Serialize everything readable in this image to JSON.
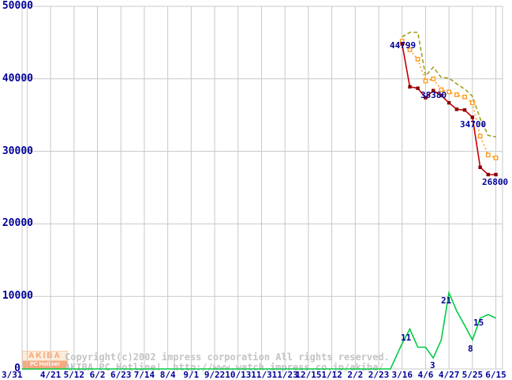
{
  "colors": {
    "background": "#ffffff",
    "grid": "#c8c8c8",
    "axis_text": "#000099",
    "watermark_text": "#c4c4c4",
    "lowest_line": "#c40000",
    "lowest_marker": "#8b0000",
    "average_line": "#ff9c20",
    "highest_line": "#a0a020",
    "shops_line": "#00cc44"
  },
  "watermark": {
    "logo_top": "AKIBA",
    "logo_bottom": "PC Hotline!",
    "line1": "Copyright(c)2002 impress corporation All rights reserved.",
    "line2": "AKIBA PC Hotline!  http://www.watch.impress.co.jp/akiba/"
  },
  "chart_data": {
    "type": "line",
    "title": "",
    "grid": true,
    "x_axis": {
      "tick_labels": [
        "3/31",
        "4/21",
        "5/12",
        "6/2",
        "6/23",
        "7/14",
        "8/4",
        "9/1",
        "9/22",
        "10/13",
        "11/3",
        "11/23",
        "12/15",
        "1/12",
        "2/2",
        "2/23",
        "3/16",
        "4/6",
        "4/27",
        "5/25",
        "6/15"
      ]
    },
    "y_axis": {
      "min": 0,
      "max": 50000,
      "tick_labels": [
        "0",
        "10000",
        "20000",
        "30000",
        "40000",
        "50000"
      ]
    },
    "y2_axis": {
      "min": 0,
      "max": 100,
      "visible": false,
      "note": "hidden scale used by shop_count line"
    },
    "series": [
      {
        "name": "highest_price",
        "style": "dashed",
        "dash": "5 3",
        "color": "#a0a020",
        "markers": false,
        "axis": "y",
        "points": [
          [
            16,
            45800
          ],
          [
            16.33,
            46400
          ],
          [
            16.67,
            46400
          ],
          [
            17,
            40400
          ],
          [
            17.33,
            41600
          ],
          [
            17.67,
            40200
          ],
          [
            18,
            40100
          ],
          [
            18.33,
            39300
          ],
          [
            18.67,
            38600
          ],
          [
            19,
            37600
          ],
          [
            19.33,
            34500
          ],
          [
            19.67,
            32200
          ],
          [
            20,
            32000
          ]
        ]
      },
      {
        "name": "average_price",
        "style": "dashed",
        "dash": "2 3",
        "color": "#ff9c20",
        "markers": true,
        "marker_style": "open",
        "axis": "y",
        "points": [
          [
            16,
            45200
          ],
          [
            16.33,
            44000
          ],
          [
            16.67,
            42700
          ],
          [
            17,
            39700
          ],
          [
            17.33,
            40000
          ],
          [
            17.67,
            38500
          ],
          [
            18,
            38200
          ],
          [
            18.33,
            37800
          ],
          [
            18.67,
            37500
          ],
          [
            19,
            36700
          ],
          [
            19.33,
            32100
          ],
          [
            19.67,
            29500
          ],
          [
            20,
            29100
          ]
        ]
      },
      {
        "name": "lowest_price",
        "style": "solid",
        "dash": "",
        "color": "#c40000",
        "markers": true,
        "marker_style": "filled",
        "marker_color": "#8b0000",
        "axis": "y",
        "points": [
          [
            16,
            44799
          ],
          [
            16.33,
            38900
          ],
          [
            16.67,
            38700
          ],
          [
            17,
            37400
          ],
          [
            17.33,
            38380
          ],
          [
            17.67,
            37700
          ],
          [
            18,
            36700
          ],
          [
            18.33,
            35800
          ],
          [
            18.67,
            35700
          ],
          [
            19,
            34700
          ],
          [
            19.33,
            27800
          ],
          [
            19.67,
            26800
          ],
          [
            20,
            26800
          ]
        ]
      },
      {
        "name": "shop_count",
        "style": "solid",
        "dash": "",
        "color": "#00cc44",
        "markers": false,
        "axis": "y2",
        "points": [
          [
            -0.215,
            0
          ],
          [
            15.5,
            0
          ],
          [
            16,
            7
          ],
          [
            16.33,
            11
          ],
          [
            16.67,
            6
          ],
          [
            17,
            6
          ],
          [
            17.33,
            3
          ],
          [
            17.67,
            8
          ],
          [
            18,
            21
          ],
          [
            18.33,
            16
          ],
          [
            18.67,
            12
          ],
          [
            19,
            8
          ],
          [
            19.33,
            14
          ],
          [
            19.67,
            15
          ],
          [
            20,
            14
          ]
        ]
      }
    ],
    "annotations": [
      {
        "text": "44799",
        "x": 494,
        "y": 52
      },
      {
        "text": "38380",
        "x": 533,
        "y": 115
      },
      {
        "text": "34700",
        "x": 583,
        "y": 152
      },
      {
        "text": "26800",
        "x": 611,
        "y": 225
      },
      {
        "text": "11",
        "x": 508,
        "y": 422
      },
      {
        "text": "3",
        "x": 545,
        "y": 457
      },
      {
        "text": "21",
        "x": 559,
        "y": 375
      },
      {
        "text": "8",
        "x": 593,
        "y": 436
      },
      {
        "text": "15",
        "x": 600,
        "y": 403
      }
    ]
  }
}
